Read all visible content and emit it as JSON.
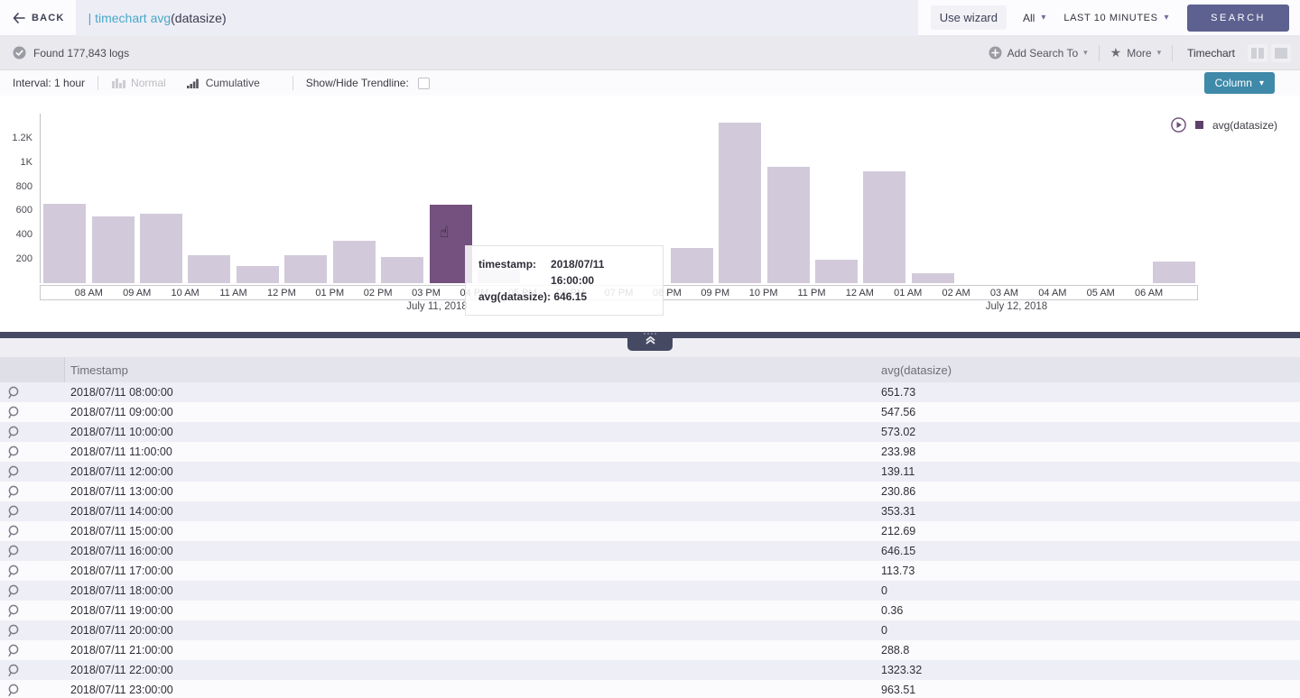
{
  "topbar": {
    "back_label": "BACK",
    "query_primary": "| timechart avg",
    "query_secondary": "(datasize)",
    "use_wizard": "Use wizard",
    "scope": "All",
    "time_range": "LAST 10 MINUTES",
    "search_label": "SEARCH"
  },
  "toolbar": {
    "found_text": "Found 177,843 logs",
    "add_search_to": "Add Search To",
    "more_label": "More",
    "view_label": "Timechart"
  },
  "controls": {
    "interval": "Interval: 1 hour",
    "normal_label": "Normal",
    "cumulative_label": "Cumulative",
    "trendline_label": "Show/Hide Trendline:",
    "chart_type": "Column"
  },
  "chart_data": {
    "type": "bar",
    "title": "",
    "xlabel": "",
    "ylabel": "",
    "x": [
      "2018/07/11 08:00:00",
      "2018/07/11 09:00:00",
      "2018/07/11 10:00:00",
      "2018/07/11 11:00:00",
      "2018/07/11 12:00:00",
      "2018/07/11 13:00:00",
      "2018/07/11 14:00:00",
      "2018/07/11 15:00:00",
      "2018/07/11 16:00:00",
      "2018/07/11 17:00:00",
      "2018/07/11 18:00:00",
      "2018/07/11 19:00:00",
      "2018/07/11 20:00:00",
      "2018/07/11 21:00:00",
      "2018/07/11 22:00:00",
      "2018/07/11 23:00:00",
      "2018/07/12 00:00:00",
      "2018/07/12 01:00:00",
      "2018/07/12 02:00:00",
      "2018/07/12 03:00:00",
      "2018/07/12 04:00:00",
      "2018/07/12 05:00:00",
      "2018/07/12 06:00:00",
      "2018/07/12 07:00:00"
    ],
    "series": [
      {
        "name": "avg(datasize)",
        "values": [
          651.73,
          547.56,
          573.02,
          233.98,
          139.11,
          230.86,
          353.31,
          212.69,
          646.15,
          113.73,
          0,
          0.36,
          0,
          288.8,
          1323.32,
          963.51,
          195,
          920,
          80,
          0,
          0,
          0,
          0,
          180
        ]
      }
    ],
    "x_tick_labels": [
      "08 AM",
      "09 AM",
      "10 AM",
      "11 AM",
      "12 PM",
      "01 PM",
      "02 PM",
      "03 PM",
      "04 PM",
      "05 PM",
      "06 PM",
      "07 PM",
      "08 PM",
      "09 PM",
      "10 PM",
      "11 PM",
      "12 AM",
      "01 AM",
      "02 AM",
      "03 AM",
      "04 AM",
      "05 AM",
      "06 AM"
    ],
    "y_tick_labels": [
      "200",
      "400",
      "600",
      "800",
      "1K",
      "1.2K"
    ],
    "y_tick_values": [
      200,
      400,
      600,
      800,
      1000,
      1200
    ],
    "ylim": [
      0,
      1400
    ],
    "grid": false,
    "legend_position": "top-right",
    "legend": "avg(datasize)",
    "date_labels": [
      "July 11, 2018",
      "July 12, 2018"
    ],
    "highlighted_index": 8,
    "tooltip": {
      "ts_label": "timestamp:",
      "ts_value": "2018/07/11 16:00:00",
      "val_label": "avg(datasize):",
      "val_value": "646.15"
    }
  },
  "table": {
    "columns": [
      "Timestamp",
      "avg(datasize)"
    ],
    "rows": [
      [
        "2018/07/11 08:00:00",
        "651.73"
      ],
      [
        "2018/07/11 09:00:00",
        "547.56"
      ],
      [
        "2018/07/11 10:00:00",
        "573.02"
      ],
      [
        "2018/07/11 11:00:00",
        "233.98"
      ],
      [
        "2018/07/11 12:00:00",
        "139.11"
      ],
      [
        "2018/07/11 13:00:00",
        "230.86"
      ],
      [
        "2018/07/11 14:00:00",
        "353.31"
      ],
      [
        "2018/07/11 15:00:00",
        "212.69"
      ],
      [
        "2018/07/11 16:00:00",
        "646.15"
      ],
      [
        "2018/07/11 17:00:00",
        "113.73"
      ],
      [
        "2018/07/11 18:00:00",
        "0"
      ],
      [
        "2018/07/11 19:00:00",
        "0.36"
      ],
      [
        "2018/07/11 20:00:00",
        "0"
      ],
      [
        "2018/07/11 21:00:00",
        "288.8"
      ],
      [
        "2018/07/11 22:00:00",
        "1323.32"
      ],
      [
        "2018/07/11 23:00:00",
        "963.51"
      ]
    ]
  },
  "colors": {
    "bar": "#d2cada",
    "bar_highlight": "#74517e",
    "legend_swatch": "#5e4168",
    "search_button": "#5d6190",
    "column_button": "#3f89a9",
    "divider": "#454962",
    "query_accent": "#49a8c8"
  }
}
